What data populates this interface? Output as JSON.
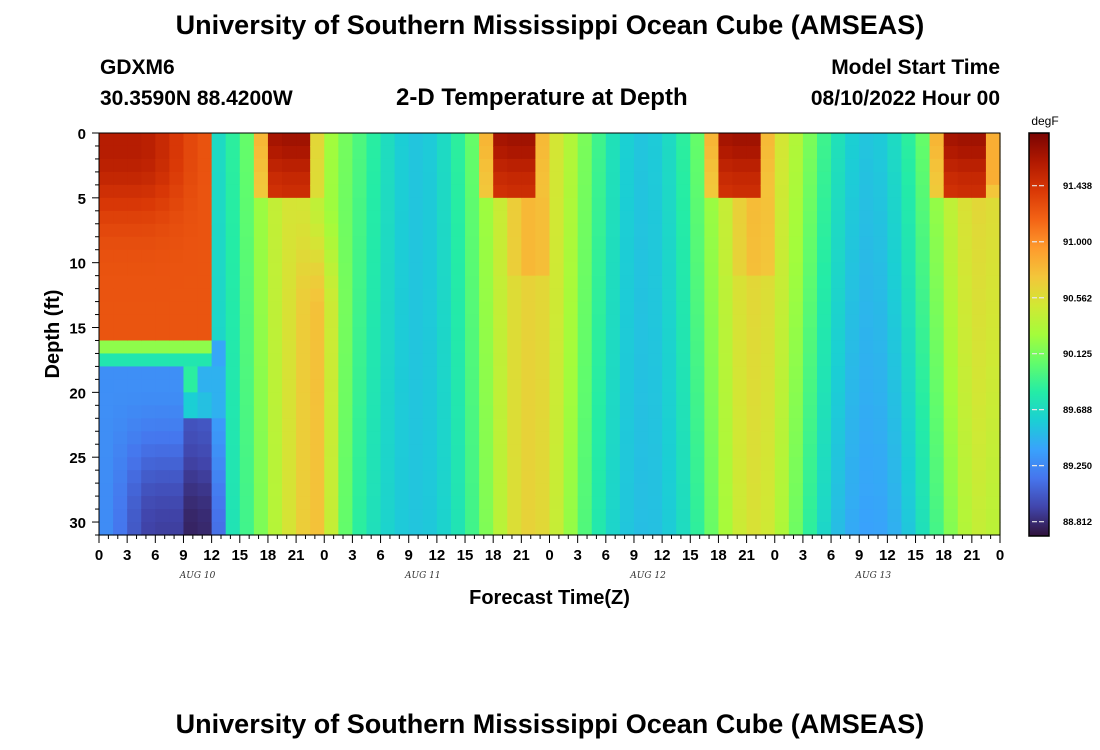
{
  "header": {
    "title": "University of Southern Mississippi Ocean Cube (AMSEAS)",
    "station_id": "GDXM6",
    "coordinates": "30.3590N  88.4200W",
    "subtitle": "2-D Temperature at Depth",
    "model_start_label": "Model Start Time",
    "model_start_value": "08/10/2022 Hour 00"
  },
  "footer": {
    "title": "University of Southern Mississippi Ocean Cube (AMSEAS)"
  },
  "chart_data": {
    "type": "heatmap",
    "xlabel": "Forecast Time(Z)",
    "ylabel": "Depth (ft)",
    "x_hours_range": [
      0,
      96
    ],
    "x_tick_labels": [
      "0",
      "3",
      "6",
      "9",
      "12",
      "15",
      "18",
      "21",
      "0",
      "3",
      "6",
      "9",
      "12",
      "15",
      "18",
      "21",
      "0",
      "3",
      "6",
      "9",
      "12",
      "15",
      "18",
      "21",
      "0",
      "3",
      "6",
      "9",
      "12",
      "15",
      "18",
      "21",
      "0"
    ],
    "day_labels": [
      "AUG 10",
      "AUG 11",
      "AUG 12",
      "AUG 13"
    ],
    "y_range": [
      0,
      31
    ],
    "y_inverted": true,
    "y_ticks": [
      0,
      5,
      10,
      15,
      20,
      25,
      30
    ],
    "colorbar": {
      "unit": "degF",
      "tick_values": [
        91.438,
        91.0,
        90.562,
        90.125,
        89.688,
        89.25,
        88.812
      ],
      "tick_labels": [
        "91.438",
        "91.000",
        "90.562",
        "90.125",
        "89.688",
        "89.250",
        "88.812"
      ],
      "range": [
        88.7,
        91.85
      ],
      "colormap": [
        "#30123b",
        "#4145ab",
        "#4675ed",
        "#39a2fc",
        "#1bcfd4",
        "#24eca6",
        "#61fc6c",
        "#a4fc3b",
        "#d1e834",
        "#f3c63a",
        "#fe9b2d",
        "#f36315",
        "#d93806",
        "#b11901",
        "#7a0402"
      ]
    },
    "cell_hours": 1.5,
    "cell_depth_ft": 1,
    "overall_range_degF": [
      88.75,
      91.75
    ],
    "pattern": "Diurnal cycle: warm near-surface layer in each afternoon (about 15Z-24Z, up to 91.7 degF in the top 5 ft), cool minima near 9Z-12Z; first 12 h warm (about 91.3 degF) above 16 ft over a cold layer (about 88.8-89.4 degF) below 18 ft."
  }
}
